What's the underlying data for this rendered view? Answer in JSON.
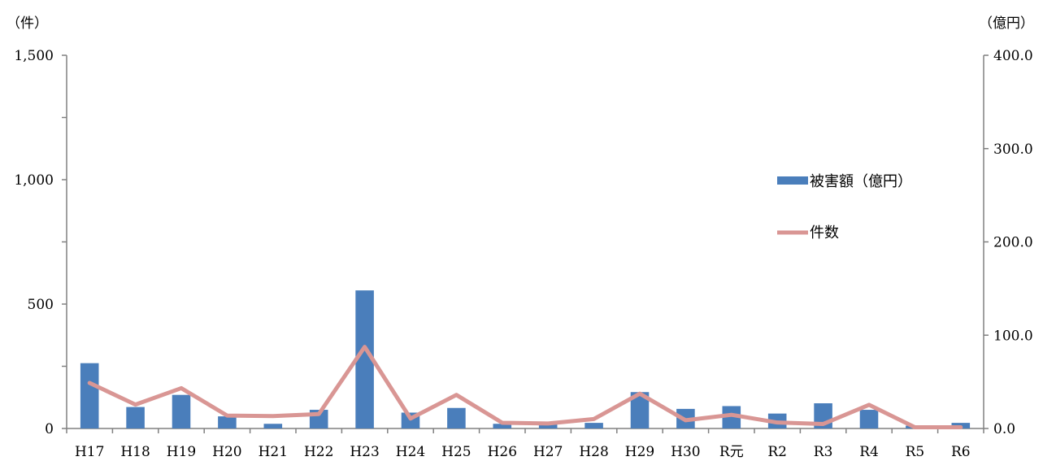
{
  "chart_data": {
    "type": "bar",
    "categories": [
      "H17",
      "H18",
      "H19",
      "H20",
      "H21",
      "H22",
      "H23",
      "H24",
      "H25",
      "H26",
      "H27",
      "H28",
      "H29",
      "H30",
      "R元",
      "R2",
      "R3",
      "R4",
      "R5",
      "R6"
    ],
    "series": [
      {
        "name": "被害額（億円）",
        "kind": "bar",
        "axis": "right",
        "color": "#4a7ebb",
        "values": [
          70,
          23,
          36,
          13,
          5,
          20,
          148,
          17,
          22,
          5,
          5,
          6,
          39,
          21,
          24,
          16,
          27,
          20,
          3,
          6
        ]
      },
      {
        "name": "件数",
        "kind": "line",
        "axis": "left",
        "color": "#d99694",
        "values": [
          183,
          96,
          162,
          52,
          50,
          58,
          328,
          40,
          135,
          23,
          20,
          38,
          140,
          33,
          55,
          24,
          18,
          95,
          5,
          5
        ]
      }
    ],
    "y_left": {
      "unit": "（件）",
      "min": 0,
      "max": 1500,
      "ticks": [
        "0",
        "500",
        "1,000",
        "1,500"
      ]
    },
    "y_right": {
      "unit": "（億円）",
      "min": 0,
      "max": 400,
      "ticks": [
        "0.0",
        "100.0",
        "200.0",
        "300.0",
        "400.0"
      ]
    },
    "legend_position": "right",
    "grid": false
  }
}
